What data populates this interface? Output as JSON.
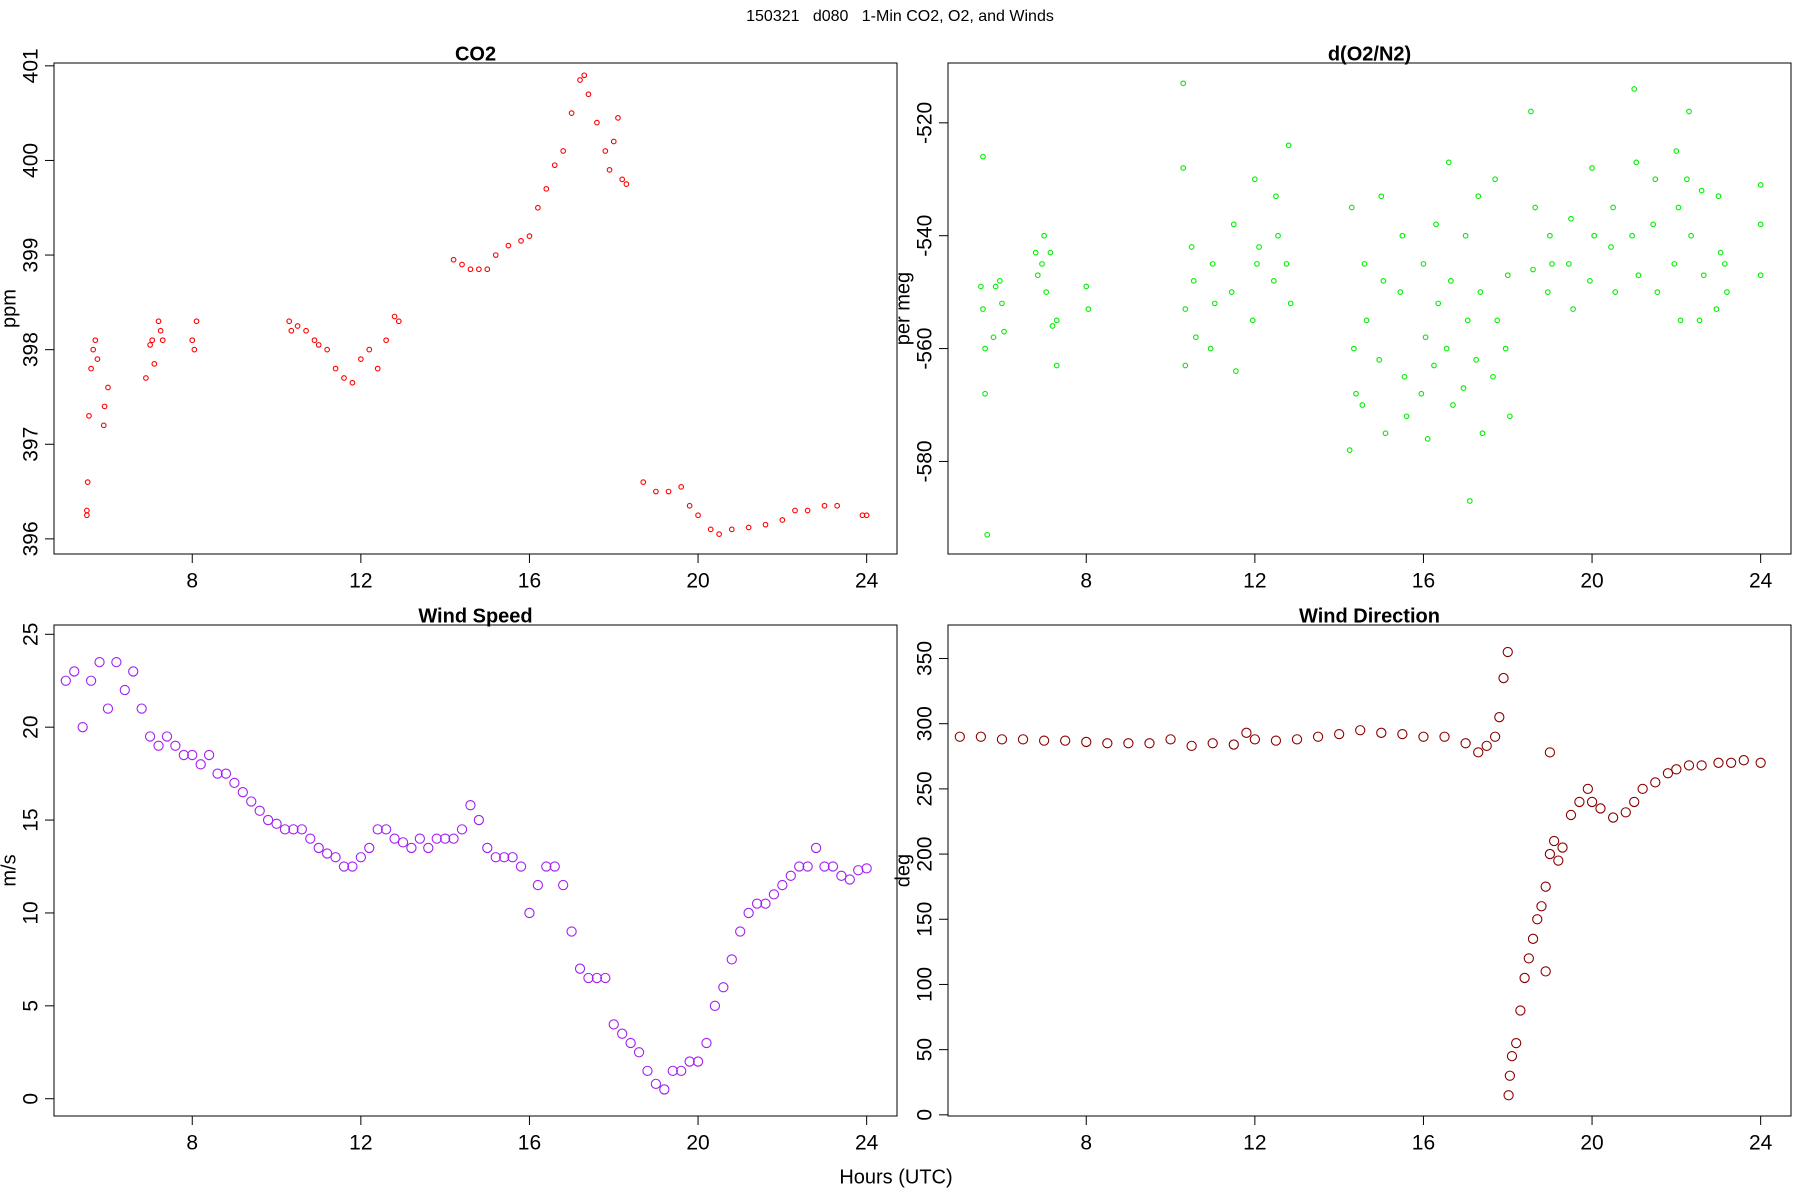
{
  "title": "150321   d080   1-Min CO2, O2, and Winds",
  "xlabel": "Hours (UTC)",
  "chart_data": [
    {
      "type": "scatter",
      "title": "CO2",
      "ylabel": "ppm",
      "color": "#ff0000",
      "x": [
        5.5,
        5.5,
        5.52,
        5.55,
        5.6,
        5.65,
        5.7,
        5.75,
        5.9,
        5.92,
        6.0,
        6.9,
        7.0,
        7.05,
        7.1,
        7.2,
        7.25,
        7.3,
        8.0,
        8.05,
        8.1,
        10.3,
        10.35,
        10.5,
        10.7,
        10.9,
        11.0,
        11.2,
        11.4,
        11.6,
        11.8,
        12.0,
        12.2,
        12.4,
        12.6,
        12.8,
        12.9,
        14.2,
        14.4,
        14.6,
        14.8,
        15.0,
        15.2,
        15.5,
        15.8,
        16.0,
        16.2,
        16.4,
        16.6,
        16.8,
        17.0,
        17.2,
        17.3,
        17.4,
        17.6,
        17.8,
        17.9,
        18.0,
        18.1,
        18.2,
        18.3,
        18.7,
        19.0,
        19.3,
        19.6,
        19.8,
        20.0,
        20.3,
        20.5,
        20.8,
        21.2,
        21.6,
        22.0,
        22.3,
        22.6,
        23.0,
        23.3,
        23.9,
        24.0
      ],
      "values": [
        396.25,
        396.3,
        396.6,
        397.3,
        397.8,
        398.0,
        398.1,
        397.9,
        397.2,
        397.4,
        397.6,
        397.7,
        398.05,
        398.1,
        397.85,
        398.3,
        398.2,
        398.1,
        398.1,
        398.0,
        398.3,
        398.3,
        398.2,
        398.25,
        398.2,
        398.1,
        398.05,
        398.0,
        397.8,
        397.7,
        397.65,
        397.9,
        398.0,
        397.8,
        398.1,
        398.35,
        398.3,
        398.95,
        398.9,
        398.85,
        398.85,
        398.85,
        399.0,
        399.1,
        399.15,
        399.2,
        399.5,
        399.7,
        399.95,
        400.1,
        400.5,
        400.85,
        400.9,
        400.7,
        400.4,
        400.1,
        399.9,
        400.2,
        400.45,
        399.8,
        399.75,
        396.6,
        396.5,
        396.5,
        396.55,
        396.35,
        396.25,
        396.1,
        396.05,
        396.1,
        396.12,
        396.15,
        396.2,
        396.3,
        396.3,
        396.35,
        396.35,
        396.25,
        396.25
      ],
      "xlim": [
        4.72,
        24.72
      ],
      "xticks": [
        8,
        12,
        16,
        20,
        24
      ],
      "ylim": [
        395.84,
        401.03
      ],
      "yticks": [
        396,
        397,
        398,
        399,
        400,
        401
      ]
    },
    {
      "type": "scatter",
      "title": "d(O2/N2)",
      "ylabel": "per meg",
      "color": "#00ee00",
      "x": [
        5.5,
        5.55,
        5.6,
        5.6,
        5.55,
        5.65,
        5.8,
        5.85,
        6.0,
        5.95,
        6.05,
        6.8,
        6.85,
        7.0,
        7.05,
        6.95,
        7.2,
        7.15,
        7.3,
        7.3,
        8.0,
        8.05,
        10.3,
        10.3,
        10.35,
        10.35,
        10.5,
        10.55,
        10.6,
        11.0,
        11.05,
        10.95,
        11.5,
        11.45,
        11.55,
        12.0,
        12.05,
        11.95,
        12.1,
        12.5,
        12.45,
        12.55,
        12.8,
        12.75,
        12.85,
        14.3,
        14.35,
        14.25,
        14.4,
        14.6,
        14.65,
        14.55,
        15.0,
        15.05,
        14.95,
        15.1,
        15.5,
        15.45,
        15.55,
        15.6,
        16.0,
        16.05,
        15.95,
        16.1,
        16.3,
        16.35,
        16.25,
        16.6,
        16.65,
        16.55,
        16.7,
        17.0,
        17.05,
        16.95,
        17.1,
        17.3,
        17.35,
        17.25,
        17.4,
        17.7,
        17.75,
        17.65,
        18.0,
        17.95,
        18.05,
        18.6,
        18.65,
        18.55,
        19.0,
        19.05,
        18.95,
        19.5,
        19.45,
        19.55,
        20.0,
        20.05,
        19.95,
        20.5,
        20.45,
        20.55,
        21.0,
        21.05,
        20.95,
        21.1,
        21.5,
        21.45,
        21.55,
        22.0,
        22.05,
        21.95,
        22.1,
        22.3,
        22.35,
        22.25,
        22.6,
        22.65,
        22.55,
        23.0,
        23.05,
        22.95,
        23.2,
        23.15,
        24.0,
        24.0,
        24.0
      ],
      "values": [
        -549,
        -553,
        -560,
        -568,
        -526,
        -593,
        -558,
        -549,
        -552,
        -548,
        -557,
        -543,
        -547,
        -540,
        -550,
        -545,
        -556,
        -543,
        -563,
        -555,
        -549,
        -553,
        -513,
        -528,
        -553,
        -563,
        -542,
        -548,
        -558,
        -545,
        -552,
        -560,
        -538,
        -550,
        -564,
        -530,
        -545,
        -555,
        -542,
        -533,
        -548,
        -540,
        -524,
        -545,
        -552,
        -535,
        -560,
        -578,
        -568,
        -545,
        -555,
        -570,
        -533,
        -548,
        -562,
        -575,
        -540,
        -550,
        -565,
        -572,
        -545,
        -558,
        -568,
        -576,
        -538,
        -552,
        -563,
        -527,
        -548,
        -560,
        -570,
        -540,
        -555,
        -567,
        -587,
        -533,
        -550,
        -562,
        -575,
        -530,
        -555,
        -565,
        -547,
        -560,
        -572,
        -546,
        -535,
        -518,
        -540,
        -545,
        -550,
        -537,
        -545,
        -553,
        -528,
        -540,
        -548,
        -535,
        -542,
        -550,
        -514,
        -527,
        -540,
        -547,
        -530,
        -538,
        -550,
        -525,
        -535,
        -545,
        -555,
        -518,
        -540,
        -530,
        -532,
        -547,
        -555,
        -533,
        -543,
        -553,
        -550,
        -545,
        -531,
        -538,
        -547
      ],
      "xlim": [
        4.72,
        24.72
      ],
      "xticks": [
        8,
        12,
        16,
        20,
        24
      ],
      "ylim": [
        -596.4,
        -509.4
      ],
      "yticks": [
        -580,
        -560,
        -540,
        -520
      ]
    },
    {
      "type": "scatter",
      "title": "Wind Speed",
      "ylabel": "m/s",
      "color": "#a020f0",
      "x": [
        5.0,
        5.2,
        5.4,
        5.6,
        5.8,
        6.0,
        6.2,
        6.4,
        6.6,
        6.8,
        7.0,
        7.2,
        7.4,
        7.6,
        7.8,
        8.0,
        8.2,
        8.4,
        8.6,
        8.8,
        9.0,
        9.2,
        9.4,
        9.6,
        9.8,
        10.0,
        10.2,
        10.4,
        10.6,
        10.8,
        11.0,
        11.2,
        11.4,
        11.6,
        11.8,
        12.0,
        12.2,
        12.4,
        12.6,
        12.8,
        13.0,
        13.2,
        13.4,
        13.6,
        13.8,
        14.0,
        14.2,
        14.4,
        14.6,
        14.8,
        15.0,
        15.2,
        15.4,
        15.6,
        15.8,
        16.0,
        16.2,
        16.4,
        16.6,
        16.8,
        17.0,
        17.2,
        17.4,
        17.6,
        17.8,
        18.0,
        18.2,
        18.4,
        18.6,
        18.8,
        19.0,
        19.2,
        19.4,
        19.6,
        19.8,
        20.0,
        20.2,
        20.4,
        20.6,
        20.8,
        21.0,
        21.2,
        21.4,
        21.6,
        21.8,
        22.0,
        22.2,
        22.4,
        22.6,
        22.8,
        23.0,
        23.2,
        23.4,
        23.6,
        23.8,
        24.0
      ],
      "values": [
        22.5,
        23,
        20,
        22.5,
        23.5,
        21,
        23.5,
        22,
        23,
        21,
        19.5,
        19,
        19.5,
        19,
        18.5,
        18.5,
        18,
        18.5,
        17.5,
        17.5,
        17,
        16.5,
        16,
        15.5,
        15,
        14.8,
        14.5,
        14.5,
        14.5,
        14,
        13.5,
        13.2,
        13,
        12.5,
        12.5,
        13,
        13.5,
        14.5,
        14.5,
        14,
        13.8,
        13.5,
        14,
        13.5,
        14,
        14,
        14,
        14.5,
        15.8,
        15,
        13.5,
        13,
        13,
        13,
        12.5,
        10,
        11.5,
        12.5,
        12.5,
        11.5,
        9,
        7,
        6.5,
        6.5,
        6.5,
        4,
        3.5,
        3,
        2.5,
        1.5,
        0.8,
        0.5,
        1.5,
        1.5,
        2,
        2,
        3,
        5,
        6,
        7.5,
        9,
        10,
        10.5,
        10.5,
        11,
        11.5,
        12,
        12.5,
        12.5,
        13.5,
        12.5,
        12.5,
        12,
        11.8,
        12.3,
        12.4
      ],
      "xlim": [
        4.72,
        24.72
      ],
      "xticks": [
        8,
        12,
        16,
        20,
        24
      ],
      "ylim": [
        -0.93,
        25.5
      ],
      "yticks": [
        0,
        5,
        10,
        15,
        20,
        25
      ]
    },
    {
      "type": "scatter",
      "title": "Wind Direction",
      "ylabel": "deg",
      "color": "#8b0000",
      "x": [
        5.0,
        5.5,
        6,
        6.5,
        7,
        7.5,
        8,
        8.5,
        9,
        9.5,
        10,
        10.5,
        11,
        11.5,
        11.8,
        12,
        12.5,
        13,
        13.5,
        14,
        14.5,
        15,
        15.5,
        16,
        16.5,
        17,
        17.3,
        17.5,
        17.7,
        17.8,
        17.9,
        18.0,
        18.02,
        18.05,
        18.1,
        18.2,
        18.3,
        18.4,
        18.5,
        18.6,
        18.7,
        18.8,
        18.9,
        18.9,
        19.0,
        19.0,
        19.1,
        19.2,
        19.3,
        19.5,
        19.7,
        19.9,
        20.0,
        20.2,
        20.5,
        20.8,
        21.0,
        21.2,
        21.5,
        21.8,
        22.0,
        22.3,
        22.6,
        23.0,
        23.3,
        23.6,
        24.0
      ],
      "values": [
        290,
        290,
        288,
        288,
        287,
        287,
        286,
        285,
        285,
        285,
        288,
        283,
        285,
        284,
        293,
        288,
        287,
        288,
        290,
        292,
        295,
        293,
        292,
        290,
        290,
        285,
        278,
        283,
        290,
        305,
        335,
        355,
        15,
        30,
        45,
        55,
        80,
        105,
        120,
        135,
        150,
        160,
        175,
        110,
        200,
        278,
        210,
        195,
        205,
        230,
        240,
        250,
        240,
        235,
        228,
        232,
        240,
        250,
        255,
        262,
        265,
        268,
        268,
        270,
        270,
        272,
        270
      ],
      "xlim": [
        4.72,
        24.72
      ],
      "xticks": [
        8,
        12,
        16,
        20,
        24
      ],
      "ylim": [
        -0.9,
        375.7
      ],
      "yticks": [
        0,
        50,
        100,
        150,
        200,
        250,
        300,
        350
      ]
    }
  ]
}
